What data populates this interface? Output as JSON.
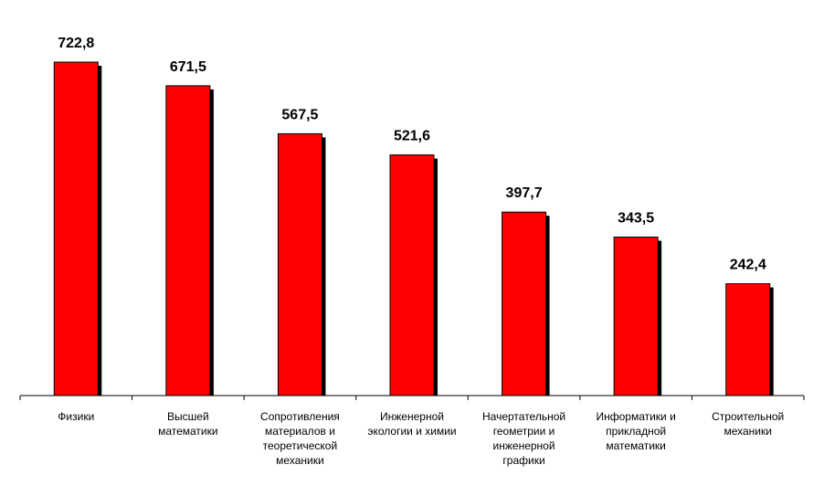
{
  "chart_data": {
    "type": "bar",
    "categories": [
      "Физики",
      "Высшей математики",
      "Сопротивления материалов и теоретической механики",
      "Инженерной экологии и химии",
      "Начертательной геометрии и инженерной графики",
      "Информатики и прикладной математики",
      "Строительной механики"
    ],
    "values": [
      722.8,
      671.5,
      567.5,
      521.6,
      397.7,
      343.5,
      242.4
    ],
    "value_labels": [
      "722,8",
      "671,5",
      "567,5",
      "521,6",
      "397,7",
      "343,5",
      "242,4"
    ],
    "color": "#ff0000"
  }
}
